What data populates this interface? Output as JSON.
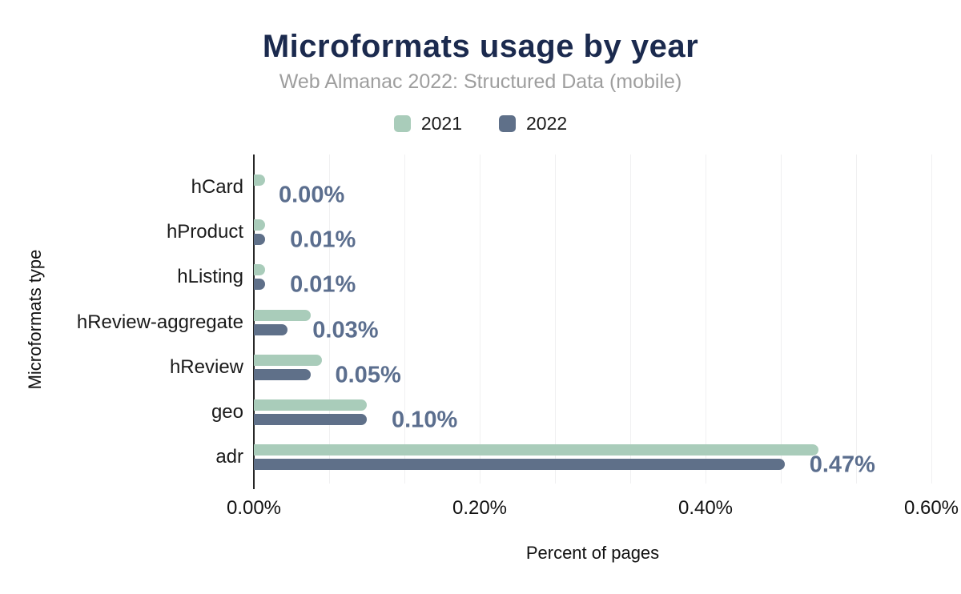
{
  "title": "Microformats usage by year",
  "subtitle": "Web Almanac 2022: Structured Data (mobile)",
  "chart_data": {
    "type": "bar",
    "orientation": "horizontal",
    "title": "Microformats usage by year",
    "subtitle": "Web Almanac 2022: Structured Data (mobile)",
    "xlabel": "Percent of pages",
    "ylabel": "Microformats type",
    "legend_position": "top",
    "categories": [
      "hCard",
      "hProduct",
      "hListing",
      "hReview-aggregate",
      "hReview",
      "geo",
      "adr"
    ],
    "series": [
      {
        "name": "2021",
        "color": "#a9ccba",
        "values": [
          0.01,
          0.01,
          0.01,
          0.05,
          0.06,
          0.1,
          0.5
        ]
      },
      {
        "name": "2022",
        "color": "#5f7089",
        "values": [
          0.0,
          0.01,
          0.01,
          0.03,
          0.05,
          0.1,
          0.47
        ]
      }
    ],
    "value_labels": [
      "0.00%",
      "0.01%",
      "0.01%",
      "0.03%",
      "0.05%",
      "0.10%",
      "0.47%"
    ],
    "value_labels_series": "2022",
    "x_axis": {
      "ticks": [
        {
          "label": "0.00%",
          "value": 0.0
        },
        {
          "label": "0.20%",
          "value": 0.2
        },
        {
          "label": "0.40%",
          "value": 0.4
        },
        {
          "label": "0.60%",
          "value": 0.6
        }
      ],
      "min": 0.0,
      "max": 0.6,
      "minor_grid_step": 0.0666667
    },
    "grid": "vertical-minor-gridlines",
    "colors": {
      "title": "#1b2a4e",
      "subtitle": "#9e9e9e",
      "value_label": "#5b6e8e",
      "axis_line": "#262626",
      "gridline": "#f0f0f1"
    }
  }
}
